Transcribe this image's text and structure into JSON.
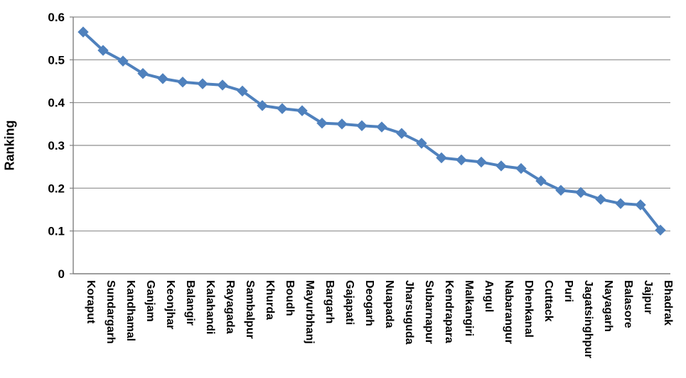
{
  "chart_data": {
    "type": "line",
    "title": "",
    "xlabel": "",
    "ylabel": "Ranking",
    "ylim": [
      0,
      0.6
    ],
    "grid": true,
    "legend": "none",
    "marker": "diamond",
    "line_color": "#4F81BD",
    "marker_color": "#4F81BD",
    "gridline_color": "#8E8E8E",
    "axis_color": "#7F7F7F",
    "text_color": "#000000",
    "ytick_values": [
      0,
      0.1,
      0.2,
      0.3,
      0.4,
      0.5,
      0.6
    ],
    "ytick_labels": [
      "0",
      "0.1",
      "0.2",
      "0.3",
      "0.4",
      "0.5",
      "0.6"
    ],
    "categories": [
      "Koraput",
      "Sundargarh",
      "Kandhamal",
      "Ganjam",
      "Keonjhar",
      "Balangir",
      "Kalahandi",
      "Rayagada",
      "Sambalpur",
      "Khurda",
      "Boudh",
      "Mayurbhanj",
      "Bargarh",
      "Gajapati",
      "Deogarh",
      "Nuapada",
      "Jharsuguda",
      "Subarnapur",
      "Kendrapara",
      "Malkangiri",
      "Angul",
      "Nabarangur",
      "Dhenkanal",
      "Cuttack",
      "Puri",
      "Jagatsinghpur",
      "Nayagarh",
      "Balasore",
      "Jajpur",
      "Bhadrak"
    ],
    "series": [
      {
        "name": "Ranking",
        "values": [
          0.565,
          0.522,
          0.497,
          0.468,
          0.456,
          0.448,
          0.444,
          0.441,
          0.427,
          0.393,
          0.386,
          0.381,
          0.352,
          0.35,
          0.346,
          0.343,
          0.328,
          0.305,
          0.271,
          0.266,
          0.261,
          0.252,
          0.246,
          0.217,
          0.195,
          0.19,
          0.174,
          0.164,
          0.161,
          0.102
        ]
      }
    ]
  }
}
